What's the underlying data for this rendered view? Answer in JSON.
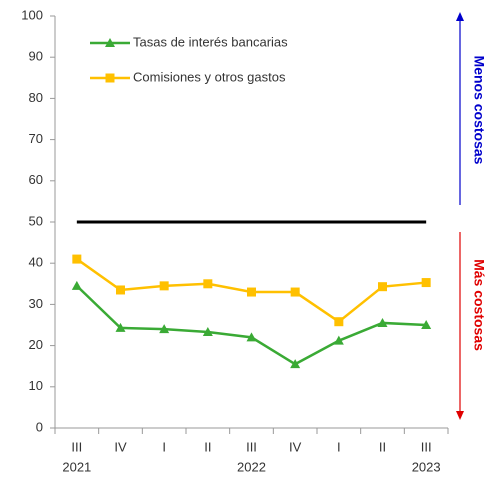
{
  "chart_data": {
    "type": "line",
    "categories": [
      "III",
      "IV",
      "I",
      "II",
      "III",
      "IV",
      "I",
      "II",
      "III"
    ],
    "year_labels": [
      "2021",
      null,
      null,
      null,
      "2022",
      null,
      null,
      null,
      "2023"
    ],
    "series": [
      {
        "name": "Tasas de interés bancarias",
        "color": "#3aaa35",
        "marker": "triangle",
        "values": [
          34.5,
          24.3,
          24,
          23.3,
          22,
          15.5,
          21.2,
          25.5,
          25
        ]
      },
      {
        "name": "Comisiones y otros gastos",
        "color": "#ffc000",
        "marker": "square",
        "values": [
          41,
          33.5,
          34.5,
          35,
          33,
          33,
          25.8,
          34.3,
          35.3
        ]
      }
    ],
    "reference_line": {
      "value": 50,
      "color": "#000000"
    },
    "annotations": [
      {
        "text": "Menos costosas",
        "color": "#0000cc"
      },
      {
        "text": "Más costosas",
        "color": "#e00000"
      }
    ],
    "ylim": [
      0,
      100
    ],
    "yticks": [
      0,
      10,
      20,
      30,
      40,
      50,
      60,
      70,
      80,
      90,
      100
    ]
  }
}
